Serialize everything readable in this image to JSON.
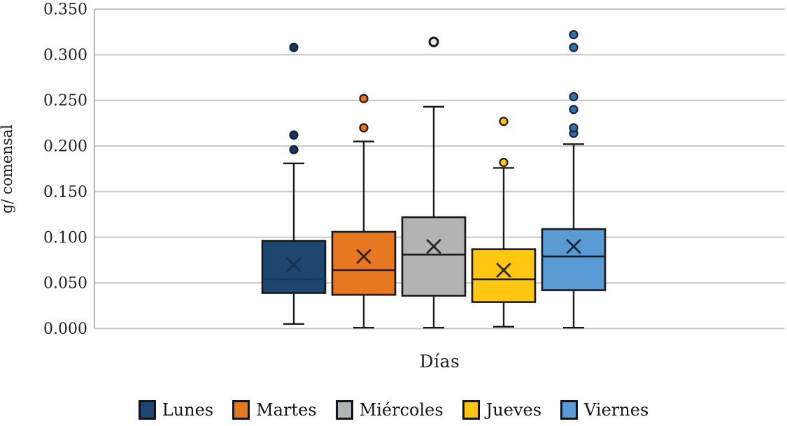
{
  "chart_data": {
    "type": "box",
    "title": "",
    "xlabel": "Días",
    "ylabel": "g/ comensal",
    "ylim": [
      0.0,
      0.35
    ],
    "ytick_step": 0.05,
    "yticks": [
      "0.000",
      "0.050",
      "0.100",
      "0.150",
      "0.200",
      "0.250",
      "0.300",
      "0.350"
    ],
    "grid": "horizontal",
    "grid_color": "#c7c7c7",
    "axis_line_color": "#b0b0b0",
    "box_border_color": "#191919",
    "whisker_color": "#191919",
    "text_color": "#1f1f1f",
    "legend_position": "bottom",
    "mean_marker": "x",
    "categories": [
      "Lunes",
      "Martes",
      "Miércoles",
      "Jueves",
      "Viernes"
    ],
    "series": [
      {
        "name": "Lunes",
        "color": "#1F4571",
        "median_color": "#1B3A5F",
        "mean_color": "#16304E",
        "outlier_fill": "#17375E",
        "outlier_stroke": "#0E1F36",
        "whisker_low": 0.005,
        "q1": 0.039,
        "median": 0.054,
        "q3": 0.096,
        "whisker_high": 0.181,
        "mean": 0.07,
        "outliers": [
          0.196,
          0.212,
          0.308
        ]
      },
      {
        "name": "Martes",
        "color": "#E87722",
        "median_color": "#1c1c1c",
        "mean_color": "#2e1d08",
        "outlier_fill": "#E87722",
        "outlier_stroke": "#27170a",
        "whisker_low": 0.001,
        "q1": 0.037,
        "median": 0.064,
        "q3": 0.106,
        "whisker_high": 0.205,
        "mean": 0.079,
        "outliers": [
          0.22,
          0.252
        ]
      },
      {
        "name": "Miércoles",
        "color": "#B3B3B3",
        "median_color": "#1c1c1c",
        "mean_color": "#262626",
        "outlier_fill": "#e9e9e9",
        "outlier_stroke": "#161616",
        "whisker_low": 0.001,
        "q1": 0.036,
        "median": 0.081,
        "q3": 0.122,
        "whisker_high": 0.243,
        "mean": 0.09,
        "outliers": [
          0.314
        ]
      },
      {
        "name": "Jueves",
        "color": "#FFC712",
        "median_color": "#1c1c1c",
        "mean_color": "#2e2408",
        "outlier_fill": "#FFC712",
        "outlier_stroke": "#1f1c10",
        "whisker_low": 0.002,
        "q1": 0.029,
        "median": 0.054,
        "q3": 0.087,
        "whisker_high": 0.176,
        "mean": 0.064,
        "outliers": [
          0.182,
          0.227
        ]
      },
      {
        "name": "Viernes",
        "color": "#5B9BD5",
        "median_color": "#15202e",
        "mean_color": "#16283F",
        "outlier_fill": "#3a6ea8",
        "outlier_stroke": "#152b45",
        "whisker_low": 0.001,
        "q1": 0.042,
        "median": 0.079,
        "q3": 0.109,
        "whisker_high": 0.202,
        "mean": 0.09,
        "outliers": [
          0.214,
          0.22,
          0.24,
          0.254,
          0.308,
          0.322
        ]
      }
    ]
  }
}
